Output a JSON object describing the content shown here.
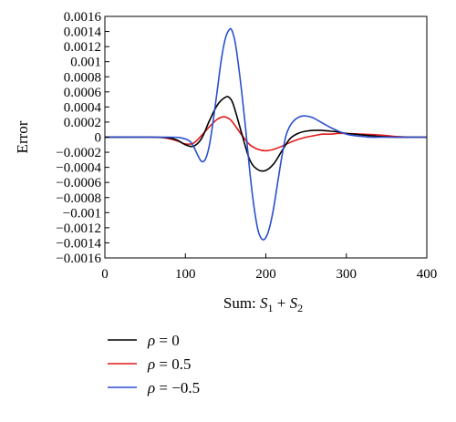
{
  "chart_data": {
    "type": "line",
    "title": "",
    "xlabel": {
      "prefix": "Sum: ",
      "s1": "S",
      "s1_sub": "1",
      "plus": " + ",
      "s2": "S",
      "s2_sub": "2"
    },
    "ylabel": "Error",
    "xlim": [
      0,
      400
    ],
    "ylim": [
      -0.0016,
      0.0016
    ],
    "x_ticks": [
      0,
      100,
      200,
      300,
      400
    ],
    "x_tick_labels": [
      "0",
      "100",
      "200",
      "300",
      "400"
    ],
    "y_ticks": [
      0.0016,
      0.0014,
      0.0012,
      0.001,
      0.0008,
      0.0006,
      0.0004,
      0.0002,
      0,
      -0.0002,
      -0.0004,
      -0.0006,
      -0.0008,
      -0.001,
      -0.0012,
      -0.0014,
      -0.0016
    ],
    "y_tick_labels": [
      "0.0016",
      "0.0014",
      "0.0012",
      "0.001",
      "0.0008",
      "0.0006",
      "0.0004",
      "0.0002",
      "0",
      "−0.0002",
      "−0.0004",
      "−0.0006",
      "−0.0008",
      "−0.001",
      "−0.0012",
      "−0.0014",
      "−0.0016"
    ],
    "grid": false,
    "legend_position": "bottom-left",
    "series": [
      {
        "name": "ρ = 0",
        "legend_symbol": "ρ",
        "legend_value": " = 0",
        "color": "#000000",
        "x": [
          0,
          60,
          80,
          90,
          100,
          110,
          120,
          130,
          140,
          150,
          155,
          160,
          170,
          180,
          190,
          200,
          210,
          220,
          230,
          240,
          250,
          260,
          270,
          280,
          290,
          300,
          320,
          340,
          360,
          380,
          400
        ],
        "y": [
          0,
          0,
          -1e-05,
          -4e-05,
          -0.0001,
          -0.00012,
          -2e-05,
          0.00022,
          0.00043,
          0.00053,
          0.00052,
          0.00042,
          5e-05,
          -0.0003,
          -0.00043,
          -0.00044,
          -0.00035,
          -0.00018,
          -2e-05,
          5e-05,
          8e-05,
          9e-05,
          9e-05,
          8e-05,
          7e-05,
          5e-05,
          3e-05,
          1e-05,
          0,
          0,
          0
        ]
      },
      {
        "name": "ρ = 0.5",
        "legend_symbol": "ρ",
        "legend_value": " = 0.5",
        "color": "#e41a1c",
        "x": [
          0,
          60,
          80,
          90,
          100,
          110,
          120,
          130,
          140,
          148,
          155,
          160,
          170,
          180,
          190,
          200,
          210,
          220,
          230,
          240,
          250,
          260,
          270,
          280,
          290,
          300,
          320,
          340,
          360,
          380,
          400
        ],
        "y": [
          0,
          0,
          -2e-05,
          -5e-05,
          -9e-05,
          -8e-05,
          2e-05,
          0.00014,
          0.00024,
          0.00027,
          0.00024,
          0.00018,
          3e-05,
          -0.0001,
          -0.00016,
          -0.00018,
          -0.00016,
          -0.00012,
          -7e-05,
          -3e-05,
          0,
          2e-05,
          4e-05,
          4e-05,
          5e-05,
          5e-05,
          4e-05,
          3e-05,
          1e-05,
          0,
          0
        ]
      },
      {
        "name": "ρ = −0.5",
        "legend_symbol": "ρ",
        "legend_value": " = −0.5",
        "color": "#2a4fd0",
        "x": [
          0,
          80,
          95,
          105,
          110,
          115,
          120,
          125,
          130,
          135,
          140,
          145,
          150,
          155,
          158,
          162,
          166,
          170,
          175,
          180,
          185,
          190,
          195,
          200,
          205,
          210,
          215,
          220,
          225,
          230,
          235,
          240,
          245,
          250,
          255,
          260,
          270,
          280,
          290,
          300,
          310,
          320,
          330,
          340,
          360,
          380,
          400
        ],
        "y": [
          0,
          0,
          -1e-05,
          -5e-05,
          -0.00012,
          -0.00023,
          -0.00032,
          -0.00029,
          -0.0001,
          0.00025,
          0.00065,
          0.00105,
          0.00132,
          0.00143,
          0.00141,
          0.00125,
          0.00095,
          0.0006,
          0.0001,
          -0.00045,
          -0.0009,
          -0.00122,
          -0.00135,
          -0.00133,
          -0.00118,
          -0.00092,
          -0.00058,
          -0.00025,
          2e-05,
          0.00015,
          0.00022,
          0.00026,
          0.00028,
          0.00028,
          0.00027,
          0.00025,
          0.00019,
          0.00013,
          8e-05,
          4e-05,
          2e-05,
          1e-05,
          0,
          0,
          0,
          0,
          0
        ]
      }
    ]
  }
}
